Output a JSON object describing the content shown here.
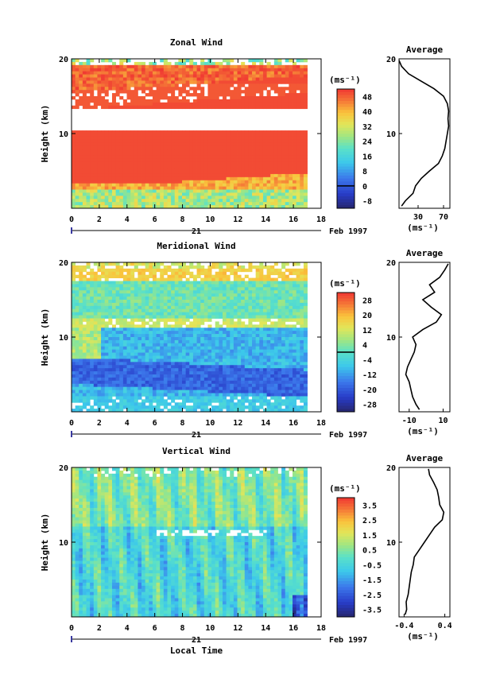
{
  "panels": [
    {
      "id": "zonal",
      "title": "Zonal Wind",
      "ylabel": "Height (km)",
      "yticks": [
        10,
        20
      ],
      "ylim": [
        0,
        20
      ],
      "xticks": [
        0,
        2,
        4,
        6,
        8,
        10,
        12,
        14,
        16,
        18
      ],
      "xlim": [
        0,
        18
      ],
      "date_tick": "21",
      "date_label": "Feb 1997",
      "unit": "(ms⁻¹)",
      "colorbar_ticks": [
        48,
        40,
        32,
        24,
        16,
        8,
        0,
        -8
      ],
      "colorbar_range": [
        -12,
        52
      ],
      "avg_title": "Average",
      "avg_xticks": [
        30,
        70
      ],
      "avg_xlim": [
        0,
        80
      ],
      "avg_yticks": [
        10,
        20
      ],
      "avg_unit": "(ms⁻¹)",
      "average_profile": {
        "height_km": [
          0.3,
          1,
          2,
          3,
          4,
          5,
          6,
          7,
          8,
          9,
          10,
          11,
          12,
          13,
          14,
          15,
          16,
          17,
          18,
          19,
          19.8
        ],
        "value": [
          4,
          10,
          22,
          26,
          35,
          48,
          62,
          68,
          72,
          74,
          76,
          78,
          77,
          78,
          76,
          70,
          55,
          35,
          15,
          4,
          0
        ]
      }
    },
    {
      "id": "meridional",
      "title": "Meridional Wind",
      "ylabel": "Height (km)",
      "yticks": [
        10,
        20
      ],
      "ylim": [
        0,
        20
      ],
      "xticks": [
        0,
        2,
        4,
        6,
        8,
        10,
        12,
        14,
        16,
        18
      ],
      "xlim": [
        0,
        18
      ],
      "date_tick": "21",
      "date_label": "Feb 1997",
      "unit": "(ms⁻¹)",
      "colorbar_ticks": [
        28,
        20,
        12,
        4,
        -4,
        -12,
        -20,
        -28
      ],
      "colorbar_range": [
        -32,
        32
      ],
      "avg_title": "Average",
      "avg_xticks": [
        -10,
        10
      ],
      "avg_xlim": [
        -16,
        14
      ],
      "avg_yticks": [
        10,
        20
      ],
      "avg_unit": "(ms⁻¹)",
      "average_profile": {
        "height_km": [
          0.3,
          1,
          2,
          3,
          4,
          5,
          6,
          7,
          8,
          9,
          10,
          11,
          12,
          13,
          14,
          15,
          16,
          17,
          18,
          19,
          19.8
        ],
        "value": [
          -4,
          -6,
          -8,
          -9,
          -10,
          -12,
          -11,
          -9,
          -7,
          -6,
          -8,
          -2,
          6,
          9,
          3,
          -2,
          5,
          2,
          8,
          11,
          13
        ]
      }
    },
    {
      "id": "vertical",
      "title": "Vertical Wind",
      "ylabel": "Height (km)",
      "yticks": [
        10,
        20
      ],
      "ylim": [
        0,
        20
      ],
      "xticks": [
        0,
        2,
        4,
        6,
        8,
        10,
        12,
        14,
        16,
        18
      ],
      "xlim": [
        0,
        18
      ],
      "date_tick": "21",
      "date_label": "Feb 1997",
      "unit": "(ms⁻¹)",
      "colorbar_ticks": [
        3.5,
        2.5,
        1.5,
        0.5,
        -0.5,
        -1.5,
        -2.5,
        -3.5
      ],
      "colorbar_range": [
        -4,
        4
      ],
      "avg_title": "Average",
      "avg_xticks": [
        -0.4,
        0.4
      ],
      "avg_xlim": [
        -0.5,
        0.5
      ],
      "avg_yticks": [
        10,
        20
      ],
      "avg_unit": "(ms⁻¹)",
      "average_profile": {
        "height_km": [
          0.3,
          1,
          2,
          3,
          4,
          5,
          6,
          7,
          8,
          9,
          10,
          11,
          12,
          13,
          14,
          15,
          16,
          17,
          18,
          19,
          19.8
        ],
        "value": [
          -0.38,
          -0.35,
          -0.36,
          -0.32,
          -0.3,
          -0.28,
          -0.26,
          -0.22,
          -0.2,
          -0.1,
          0.0,
          0.1,
          0.2,
          0.35,
          0.38,
          0.3,
          0.28,
          0.25,
          0.18,
          0.1,
          0.08
        ]
      }
    }
  ],
  "xlabel": "Local Time"
}
